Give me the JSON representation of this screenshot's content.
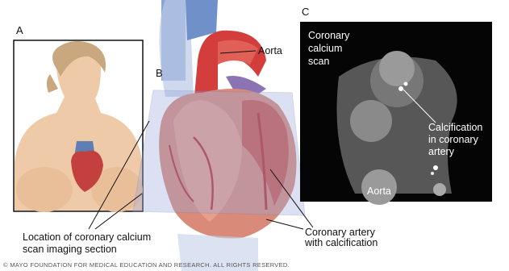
{
  "panels": {
    "a": {
      "label": "A"
    },
    "b": {
      "label": "B"
    },
    "c": {
      "label": "C"
    }
  },
  "labels": {
    "aorta_top": "Aorta",
    "scan_title": [
      "Coronary",
      "calcium",
      "scan"
    ],
    "calcification": [
      "Calcification",
      "in coronary",
      "artery"
    ],
    "aorta_scan": "Aorta",
    "location": [
      "Location of coronary calcium",
      "scan imaging section"
    ],
    "coronary_artery": [
      "Coronary artery",
      "with calcification"
    ]
  },
  "footer": "© MAYO FOUNDATION FOR MEDICAL EDUCATION AND RESEARCH. ALL RIGHTS RESERVED."
}
